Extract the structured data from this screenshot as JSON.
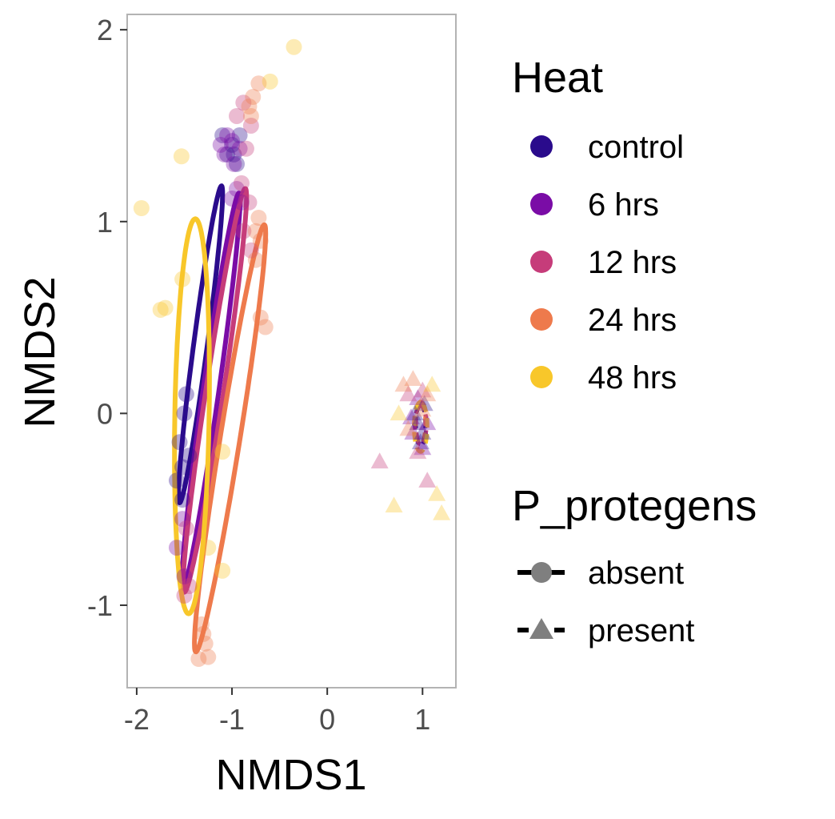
{
  "chart_data": {
    "type": "scatter",
    "xlabel": "NMDS1",
    "ylabel": "NMDS2",
    "xlim": [
      -2.1,
      1.35
    ],
    "ylim": [
      -1.43,
      2.08
    ],
    "xticks": [
      "-2",
      "-1",
      "0",
      "1"
    ],
    "yticks": [
      "-1",
      "0",
      "1",
      "2"
    ],
    "xtick_values": [
      -2,
      -1,
      0,
      1
    ],
    "ytick_values": [
      -1,
      0,
      1,
      2
    ],
    "grid": false,
    "legend_placement": "right",
    "legend_color": {
      "title": "Heat",
      "entries": [
        {
          "label": "control",
          "color": "#2a0b8c"
        },
        {
          "label": "6 hrs",
          "color": "#7a0ca6"
        },
        {
          "label": "12 hrs",
          "color": "#c63c7a"
        },
        {
          "label": "24 hrs",
          "color": "#ee7a4c"
        },
        {
          "label": "48 hrs",
          "color": "#f8c72a"
        }
      ]
    },
    "legend_shape": {
      "title": "P_protegens",
      "entries": [
        {
          "label": "absent",
          "shape": "circle",
          "line": "solid"
        },
        {
          "label": "present",
          "shape": "triangle",
          "line": "dashed"
        }
      ]
    },
    "series": [
      {
        "heat": "control",
        "protegens": "absent",
        "color": "#2a0b8c",
        "points": [
          [
            -1.48,
            0.1
          ],
          [
            -1.5,
            0.0
          ],
          [
            -1.55,
            -0.15
          ],
          [
            -1.45,
            -0.22
          ],
          [
            -1.52,
            -0.28
          ],
          [
            -1.58,
            -0.35
          ],
          [
            -1.52,
            -0.45
          ],
          [
            -1.1,
            1.45
          ],
          [
            -1.0,
            1.4
          ],
          [
            -0.92,
            1.45
          ],
          [
            -0.98,
            1.35
          ],
          [
            -1.05,
            1.35
          ],
          [
            -0.95,
            1.3
          ]
        ]
      },
      {
        "heat": "6 hrs",
        "protegens": "absent",
        "color": "#7a0ca6",
        "points": [
          [
            -1.52,
            -0.55
          ],
          [
            -1.58,
            -0.7
          ],
          [
            -1.5,
            -0.85
          ],
          [
            -1.12,
            1.4
          ],
          [
            -1.08,
            1.35
          ],
          [
            -1.0,
            1.42
          ],
          [
            -0.92,
            1.38
          ],
          [
            -0.98,
            1.3
          ],
          [
            -1.05,
            1.45
          ],
          [
            -0.95,
            1.17
          ],
          [
            -0.9,
            1.1
          ],
          [
            -1.0,
            1.12
          ]
        ]
      },
      {
        "heat": "12 hrs",
        "protegens": "absent",
        "color": "#c63c7a",
        "points": [
          [
            -1.48,
            -0.6
          ],
          [
            -1.45,
            -0.9
          ],
          [
            -1.5,
            -0.95
          ],
          [
            -0.85,
            1.38
          ],
          [
            -0.8,
            1.5
          ],
          [
            -0.95,
            1.55
          ],
          [
            -0.88,
            1.62
          ],
          [
            -0.82,
            1.1
          ],
          [
            -0.88,
            0.95
          ],
          [
            -0.8,
            0.85
          ],
          [
            -0.9,
            1.2
          ]
        ]
      },
      {
        "heat": "24 hrs",
        "protegens": "absent",
        "color": "#ee7a4c",
        "points": [
          [
            -1.32,
            -1.1
          ],
          [
            -1.28,
            -1.2
          ],
          [
            -1.35,
            -1.28
          ],
          [
            -1.25,
            -1.27
          ],
          [
            -1.3,
            -1.15
          ],
          [
            -0.72,
            1.72
          ],
          [
            -0.78,
            1.65
          ],
          [
            -0.82,
            1.6
          ],
          [
            -0.8,
            1.55
          ],
          [
            -0.7,
            0.9
          ],
          [
            -0.75,
            0.8
          ],
          [
            -0.65,
            0.45
          ],
          [
            -0.7,
            0.5
          ],
          [
            -0.75,
            0.95
          ],
          [
            -0.72,
            1.02
          ]
        ]
      },
      {
        "heat": "48 hrs",
        "protegens": "absent",
        "color": "#f8c72a",
        "points": [
          [
            -1.95,
            1.07
          ],
          [
            -1.53,
            1.34
          ],
          [
            -1.52,
            0.7
          ],
          [
            -1.75,
            0.54
          ],
          [
            -1.7,
            0.55
          ],
          [
            -1.1,
            -0.82
          ],
          [
            -1.25,
            -0.7
          ],
          [
            -0.35,
            1.91
          ],
          [
            -0.6,
            1.73
          ],
          [
            -1.1,
            -0.2
          ]
        ]
      },
      {
        "heat": "control",
        "protegens": "present",
        "color": "#2a0b8c",
        "points": [
          [
            0.95,
            -0.05
          ],
          [
            1.0,
            -0.1
          ],
          [
            0.92,
            0.0
          ],
          [
            1.02,
            0.05
          ],
          [
            0.98,
            -0.15
          ]
        ]
      },
      {
        "heat": "6 hrs",
        "protegens": "present",
        "color": "#7a0ca6",
        "points": [
          [
            0.9,
            -0.1
          ],
          [
            1.05,
            -0.05
          ],
          [
            0.95,
            0.08
          ],
          [
            1.0,
            -0.18
          ],
          [
            0.88,
            -0.02
          ]
        ]
      },
      {
        "heat": "12 hrs",
        "protegens": "present",
        "color": "#c63c7a",
        "points": [
          [
            0.55,
            -0.25
          ],
          [
            1.05,
            -0.35
          ],
          [
            0.85,
            0.1
          ],
          [
            1.0,
            0.12
          ],
          [
            0.95,
            -0.2
          ]
        ]
      },
      {
        "heat": "24 hrs",
        "protegens": "present",
        "color": "#ee7a4c",
        "points": [
          [
            0.8,
            0.15
          ],
          [
            0.9,
            0.18
          ],
          [
            1.05,
            0.1
          ],
          [
            0.85,
            -0.08
          ],
          [
            1.0,
            0.02
          ]
        ]
      },
      {
        "heat": "48 hrs",
        "protegens": "present",
        "color": "#f8c72a",
        "points": [
          [
            0.7,
            -0.48
          ],
          [
            1.15,
            -0.42
          ],
          [
            1.2,
            -0.52
          ],
          [
            1.1,
            0.15
          ],
          [
            0.75,
            0.0
          ]
        ]
      }
    ],
    "ellipses": [
      {
        "heat": "control",
        "protegens": "absent",
        "color": "#2a0b8c",
        "cx": -1.33,
        "cy": 0.36,
        "a": 0.855,
        "b": 0.07,
        "angle_deg": 75
      },
      {
        "heat": "6 hrs",
        "protegens": "absent",
        "color": "#7a0ca6",
        "cx": -1.22,
        "cy": 0.12,
        "a": 1.07,
        "b": 0.08,
        "angle_deg": 74
      },
      {
        "heat": "12 hrs",
        "protegens": "absent",
        "color": "#c63c7a",
        "cx": -1.18,
        "cy": 0.12,
        "a": 1.1,
        "b": 0.09,
        "angle_deg": 73
      },
      {
        "heat": "24 hrs",
        "protegens": "absent",
        "color": "#ee7a4c",
        "cx": -1.02,
        "cy": -0.13,
        "a": 1.17,
        "b": 0.1,
        "angle_deg": 72
      },
      {
        "heat": "48 hrs",
        "protegens": "absent",
        "color": "#f8c72a",
        "cx": -1.42,
        "cy": -0.015,
        "a": 1.03,
        "b": 0.18,
        "angle_deg": 88
      },
      {
        "heat": "control",
        "protegens": "present",
        "color": "#2a0b8c",
        "cx": 0.98,
        "cy": -0.06,
        "a": 0.11,
        "b": 0.05,
        "angle_deg": 90,
        "dashed": true
      },
      {
        "heat": "6 hrs",
        "protegens": "present",
        "color": "#7a0ca6",
        "cx": 0.98,
        "cy": -0.06,
        "a": 0.1,
        "b": 0.06,
        "angle_deg": 90,
        "dashed": true
      },
      {
        "heat": "12 hrs",
        "protegens": "present",
        "color": "#c63c7a",
        "cx": 0.98,
        "cy": -0.06,
        "a": 0.1,
        "b": 0.06,
        "angle_deg": 90,
        "dashed": true
      },
      {
        "heat": "24 hrs",
        "protegens": "present",
        "color": "#ee7a4c",
        "cx": 0.98,
        "cy": -0.05,
        "a": 0.11,
        "b": 0.05,
        "angle_deg": 90,
        "dashed": true
      },
      {
        "heat": "48 hrs",
        "protegens": "present",
        "color": "#f8c72a",
        "cx": 0.98,
        "cy": -0.07,
        "a": 0.13,
        "b": 0.07,
        "angle_deg": 90,
        "dashed": true
      }
    ]
  }
}
